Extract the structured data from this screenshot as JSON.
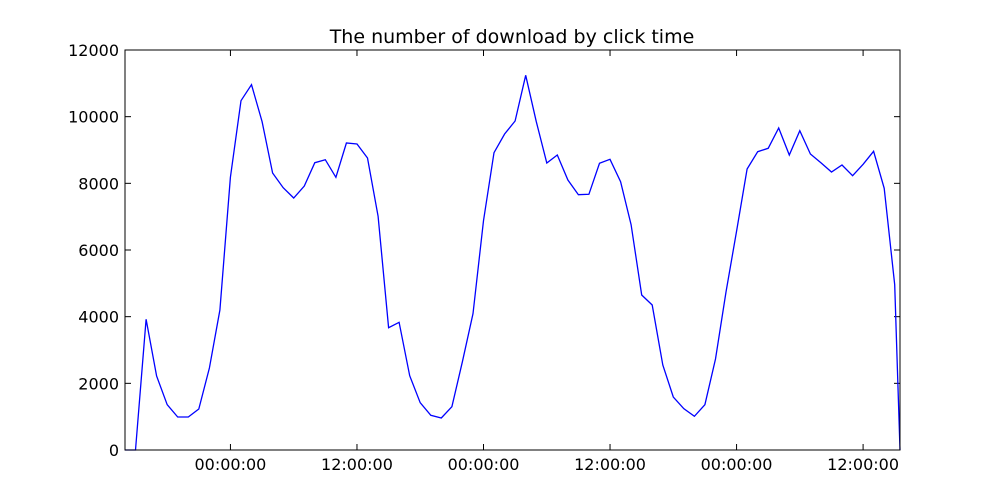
{
  "chart_data": {
    "type": "line",
    "title": "The number of download by click time",
    "xlabel": "",
    "ylabel": "",
    "ylim": [
      0,
      12000
    ],
    "xlim_hours": [
      -10,
      63.5
    ],
    "grid": false,
    "line_color": "#0000ff",
    "yticks": [
      0,
      2000,
      4000,
      6000,
      8000,
      10000,
      12000
    ],
    "xticks": [
      {
        "hour": 0,
        "label": "00:00:00"
      },
      {
        "hour": 12,
        "label": "12:00:00"
      },
      {
        "hour": 24,
        "label": "00:00:00"
      },
      {
        "hour": 36,
        "label": "12:00:00"
      },
      {
        "hour": 48,
        "label": "00:00:00"
      },
      {
        "hour": 60,
        "label": "12:00:00"
      }
    ],
    "series": [
      {
        "x": [
          -10,
          -9,
          -8,
          -7,
          -6,
          -5,
          -4,
          -3,
          -2,
          -1,
          0,
          1,
          2,
          3,
          4,
          5,
          6,
          7,
          8,
          9,
          10,
          11,
          12,
          13,
          14,
          15,
          16,
          17,
          18,
          19,
          20,
          21,
          22,
          23,
          24,
          25,
          26,
          27,
          28,
          29,
          30,
          31,
          32,
          33,
          34,
          35,
          36,
          37,
          38,
          39,
          40,
          41,
          42,
          43,
          44,
          45,
          46,
          47,
          48,
          49,
          50,
          51,
          52,
          53,
          54,
          55,
          56,
          57,
          58,
          59,
          60,
          61,
          62,
          63,
          63.5
        ],
        "values": [
          0,
          0,
          3920,
          2220,
          1360,
          990,
          990,
          1230,
          2460,
          4200,
          8180,
          10480,
          10960,
          9850,
          8310,
          7870,
          7560,
          7920,
          8620,
          8710,
          8180,
          9210,
          9180,
          8760,
          7010,
          3670,
          3830,
          2230,
          1420,
          1040,
          960,
          1300,
          2650,
          4090,
          6880,
          8920,
          9480,
          9870,
          11240,
          9860,
          8610,
          8850,
          8100,
          7660,
          7670,
          8600,
          8720,
          8050,
          6760,
          4650,
          4350,
          2550,
          1590,
          1240,
          1010,
          1360,
          2730,
          4740,
          6570,
          8430,
          8950,
          9050,
          9660,
          8850,
          9580,
          8880,
          8620,
          8340,
          8550,
          8230,
          8570,
          8960,
          7850,
          4960,
          0
        ]
      }
    ]
  }
}
